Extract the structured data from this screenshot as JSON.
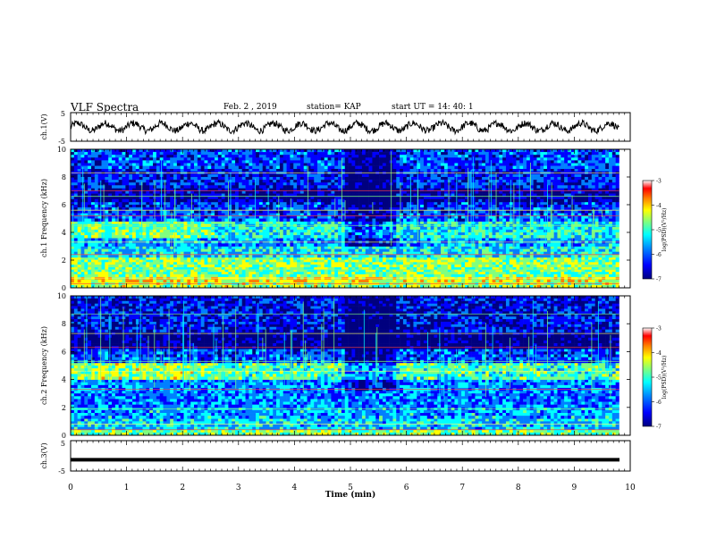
{
  "header": {
    "title": "VLF Spectra",
    "date": "Feb. 2  , 2019",
    "station": "station= KAP",
    "start": "start  UT  =   14: 40: 1"
  },
  "colors": {
    "background": "#ffffff",
    "axis": "#000000",
    "waveform": "#000000",
    "colormap": [
      "#00007f",
      "#0000ff",
      "#007fff",
      "#00ffff",
      "#7fff7f",
      "#ffff00",
      "#ff7f00",
      "#ff0000",
      "#ffffff"
    ]
  },
  "chart_data": [
    {
      "type": "line",
      "name": "ch1-waveform",
      "ylabel": "ch.1(V)",
      "ylim": [
        -5,
        5
      ],
      "ytick_labels": [
        "5",
        "-5"
      ],
      "xlim": [
        0,
        10
      ],
      "description_values": {
        "period_min": 0.5,
        "mean_amplitude_v": 0.0,
        "peak_amplitude_v": 2.2
      }
    },
    {
      "type": "heatmap",
      "name": "ch1-spectrogram",
      "ylabel": "ch.1 Frequency (kHz)",
      "ylim": [
        0,
        10
      ],
      "ytick_labels": [
        "0",
        "2",
        "4",
        "6",
        "8",
        "10"
      ],
      "xlim": [
        0,
        9.8
      ],
      "colorbar": {
        "label": "log(PSD)(V²/Hz)",
        "range": [
          -7,
          -3
        ],
        "tick_labels": [
          "-3",
          "-4",
          "-5",
          "-6",
          "-7"
        ]
      },
      "bands": [
        {
          "f0": 0.0,
          "f1": 0.4,
          "level": -4.6
        },
        {
          "f0": 0.4,
          "f1": 0.8,
          "level": -4.3
        },
        {
          "f0": 0.8,
          "f1": 1.5,
          "level": -4.8
        },
        {
          "f0": 1.5,
          "f1": 2.2,
          "level": -4.7
        },
        {
          "f0": 2.2,
          "f1": 3.0,
          "level": -5.3
        },
        {
          "f0": 3.0,
          "f1": 3.6,
          "level": -5.6
        },
        {
          "f0": 3.6,
          "f1": 4.8,
          "level": -5.2
        },
        {
          "f0": 4.8,
          "f1": 5.4,
          "level": -5.9
        },
        {
          "f0": 5.4,
          "f1": 6.2,
          "level": -6.1
        },
        {
          "f0": 6.2,
          "f1": 7.2,
          "level": -6.6
        },
        {
          "f0": 7.2,
          "f1": 8.6,
          "level": -6.2
        },
        {
          "f0": 8.6,
          "f1": 10.0,
          "level": -6.0
        }
      ],
      "quiet_interval_min": [
        4.9,
        5.8
      ],
      "lines_khz": [
        0.3,
        0.7,
        1.3,
        2.4,
        3.3,
        4.5,
        5.2,
        5.6,
        6.6,
        7.0,
        8.3
      ]
    },
    {
      "type": "heatmap",
      "name": "ch2-spectrogram",
      "ylabel": "ch.2 Frequency (kHz)",
      "ylim": [
        0,
        10
      ],
      "ytick_labels": [
        "0",
        "2",
        "4",
        "6",
        "8",
        "10"
      ],
      "xlim": [
        0,
        9.8
      ],
      "colorbar": {
        "label": "log(PSD)(V²/Hz)",
        "range": [
          -7,
          -3
        ],
        "tick_labels": [
          "-3",
          "-4",
          "-5",
          "-6",
          "-7"
        ]
      },
      "bands": [
        {
          "f0": 0.0,
          "f1": 0.4,
          "level": -4.8
        },
        {
          "f0": 0.4,
          "f1": 1.2,
          "level": -5.4
        },
        {
          "f0": 1.2,
          "f1": 2.0,
          "level": -5.6
        },
        {
          "f0": 2.0,
          "f1": 3.2,
          "level": -5.8
        },
        {
          "f0": 3.2,
          "f1": 4.0,
          "level": -5.7
        },
        {
          "f0": 4.0,
          "f1": 5.2,
          "level": -5.0
        },
        {
          "f0": 5.2,
          "f1": 6.2,
          "level": -6.0
        },
        {
          "f0": 6.2,
          "f1": 7.4,
          "level": -6.8
        },
        {
          "f0": 7.4,
          "f1": 10.0,
          "level": -6.3
        }
      ],
      "quiet_interval_min": [
        4.9,
        5.8
      ],
      "lines_khz": [
        0.4,
        0.8,
        1.9,
        3.3,
        4.6,
        5.3,
        6.3,
        7.3,
        8.7
      ]
    },
    {
      "type": "line",
      "name": "ch3-waveform",
      "ylabel": "ch.3(V)",
      "ylim": [
        -5,
        5
      ],
      "ytick_labels": [
        "5",
        "-5"
      ],
      "xlim": [
        0,
        10
      ],
      "xlabel": "Time  (min)",
      "xtick_labels": [
        "0",
        "1",
        "2",
        "3",
        "4",
        "5",
        "6",
        "7",
        "8",
        "9",
        "10"
      ],
      "constant_value_v": -1.3
    }
  ]
}
